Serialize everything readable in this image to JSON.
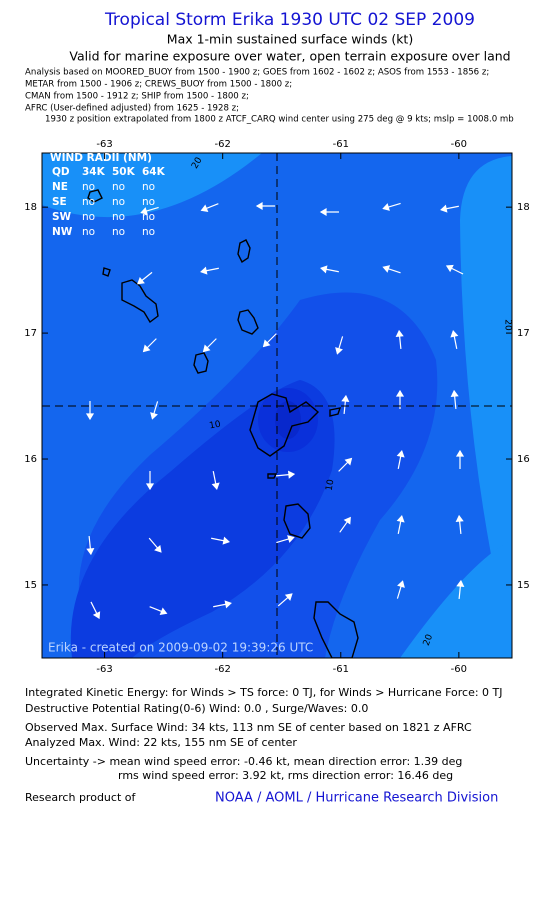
{
  "header": {
    "title": "Tropical Storm Erika 1930 UTC 02 SEP 2009",
    "subtitle": "Max 1-min sustained surface winds (kt)",
    "validity": "Valid for marine exposure over water, open terrain exposure over land",
    "sources": [
      "Analysis based on  MOORED_BUOY from 1500 - 1900 z;  GOES from 1602 - 1602 z;  ASOS from 1553 - 1856 z;",
      "METAR from 1500 - 1906 z;  CREWS_BUOY from 1500 - 1800 z;",
      "CMAN from 1500 - 1912 z;  SHIP from 1500 - 1800 z;",
      "AFRC (User-defined adjusted) from 1625 - 1928 z;"
    ],
    "position_note": "1930 z position extrapolated from 1800 z ATCF_CARQ wind center using 275 deg @ 9 kts; mslp = 1008.0 mb"
  },
  "map": {
    "xlim": [
      -63.53,
      -59.55
    ],
    "ylim": [
      14.42,
      18.43
    ],
    "xticks": [
      -63,
      -62,
      -61,
      -60
    ],
    "yticks": [
      15,
      16,
      17,
      18
    ],
    "wind_radii": {
      "title": "WIND RADII (NM)",
      "columns": [
        "QD",
        "34K",
        "50K",
        "64K"
      ],
      "rows": [
        [
          "NE",
          "no",
          "no",
          "no"
        ],
        [
          "SE",
          "no",
          "no",
          "no"
        ],
        [
          "SW",
          "no",
          "no",
          "no"
        ],
        [
          "NW",
          "no",
          "no",
          "no"
        ]
      ]
    },
    "contour_labels": [
      "20",
      "20",
      "10",
      "10",
      "20"
    ],
    "credit": "Erika - created on 2009-09-02 19:39:26 UTC"
  },
  "footer": {
    "lines": [
      "Integrated Kinetic Energy:  for Winds > TS force: 0 TJ,  for Winds > Hurricane Force: 0 TJ",
      "Destructive Potential Rating(0-6)   Wind: 0.0 , Surge/Waves: 0.0",
      "Observed Max. Surface Wind: 34 kts, 113 nm SE of center based on 1821 z AFRC",
      "Analyzed Max. Wind: 22 kts, 155 nm SE of center",
      "Uncertainty -> mean wind speed error:  -0.46 kt,   mean direction error: 1.39 deg",
      "rms wind speed error: 3.92 kt,   rms direction error: 16.46 deg"
    ],
    "research_label": "Research product of",
    "organization": "NOAA / AOML / Hurricane Research Division"
  }
}
